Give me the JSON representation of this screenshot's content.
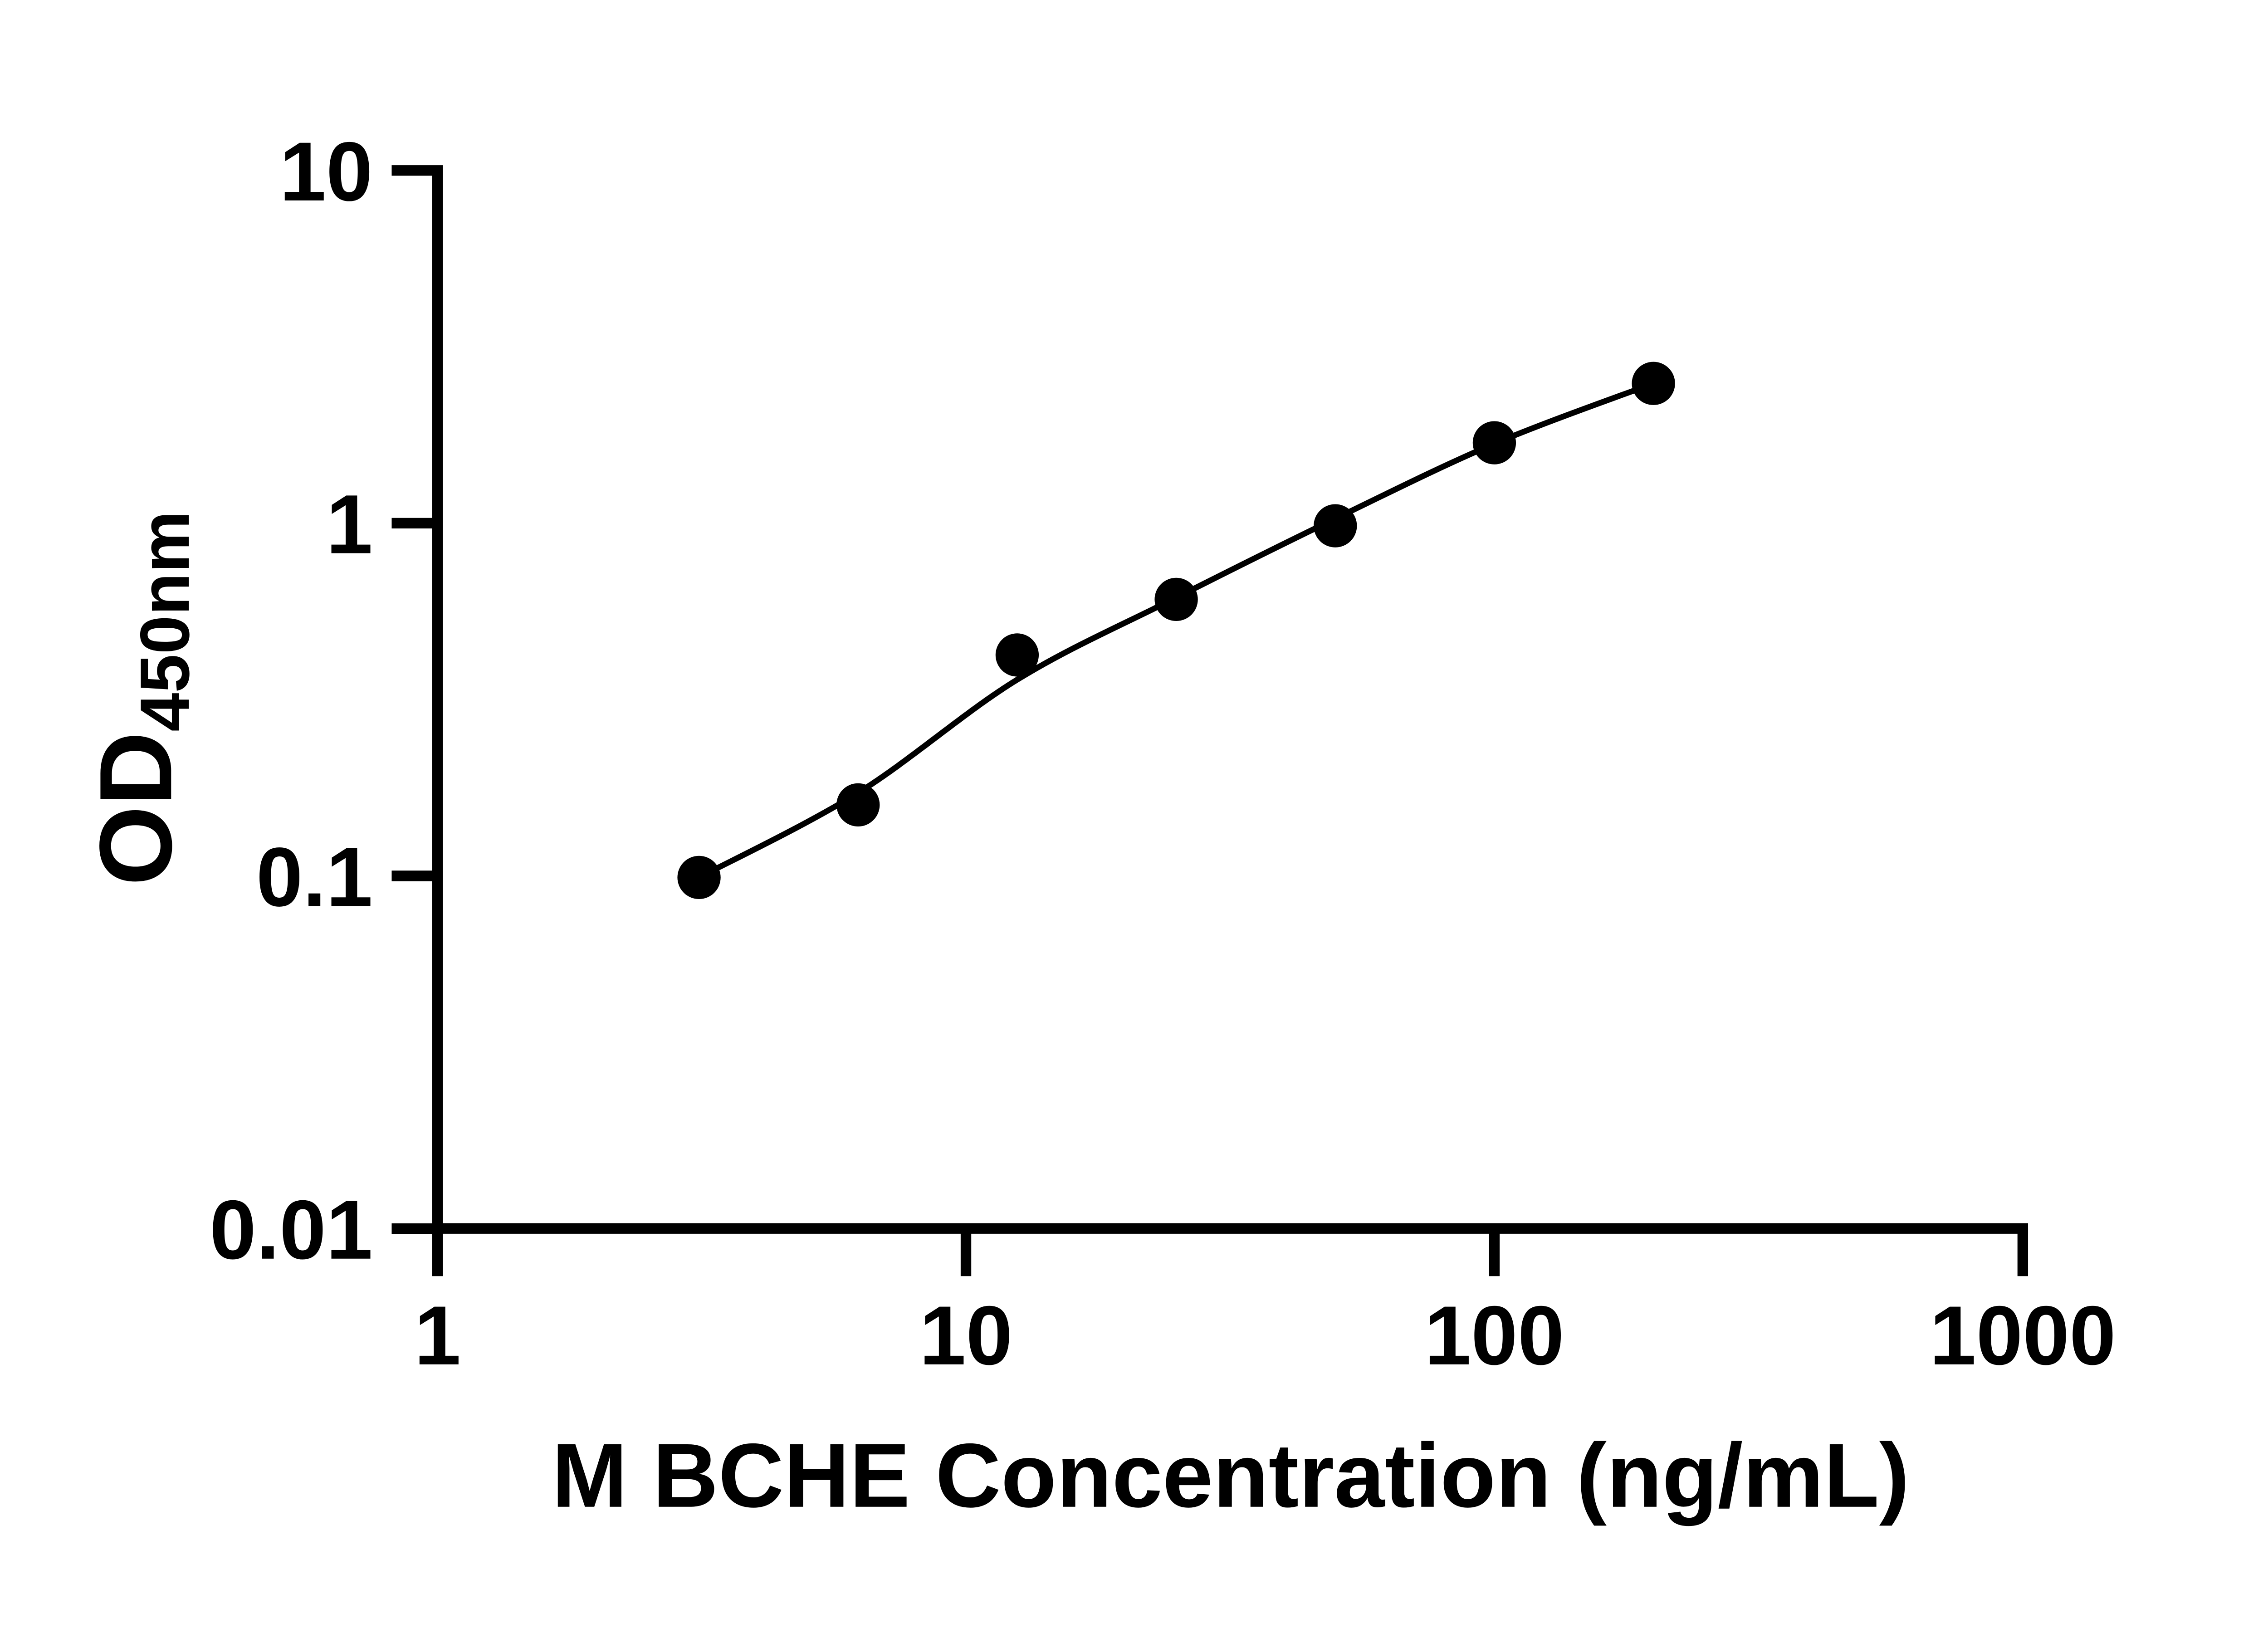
{
  "figure": {
    "background_color": "#ffffff",
    "ink_color": "#000000"
  },
  "chart_data": {
    "type": "scatter",
    "title": "",
    "xlabel": "M BCHE Concentration (ng/mL)",
    "ylabel": "OD",
    "ylabel_subscript": "450nm",
    "x_scale": "log10",
    "y_scale": "log10",
    "xlim": [
      1,
      1000
    ],
    "ylim": [
      0.01,
      10
    ],
    "x_ticks": [
      1,
      10,
      100,
      1000
    ],
    "x_tick_labels": [
      "1",
      "10",
      "100",
      "1000"
    ],
    "y_ticks": [
      0.01,
      0.1,
      1,
      10
    ],
    "y_tick_labels": [
      "0.01",
      "0.1",
      "1",
      "10"
    ],
    "grid": false,
    "legend": null,
    "series": [
      {
        "name": "standard-points",
        "marker": "filled-circle",
        "color": "#000000",
        "points": [
          {
            "x": 3.125,
            "y": 0.099
          },
          {
            "x": 6.25,
            "y": 0.159
          },
          {
            "x": 12.5,
            "y": 0.423
          },
          {
            "x": 25,
            "y": 0.608
          },
          {
            "x": 50,
            "y": 0.983
          },
          {
            "x": 100,
            "y": 1.69
          },
          {
            "x": 200,
            "y": 2.49
          }
        ]
      }
    ],
    "fit_curve": {
      "name": "standard-curve-fit",
      "color": "#000000",
      "points": [
        {
          "x": 3.125,
          "y": 0.099
        },
        {
          "x": 6.25,
          "y": 0.172
        },
        {
          "x": 12.5,
          "y": 0.36
        },
        {
          "x": 25,
          "y": 0.615
        },
        {
          "x": 50,
          "y": 1.03
        },
        {
          "x": 100,
          "y": 1.68
        },
        {
          "x": 200,
          "y": 2.49
        }
      ]
    }
  }
}
